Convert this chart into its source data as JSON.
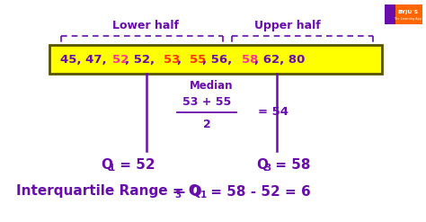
{
  "bg_color": "#ffffff",
  "box_bg": "#ffff00",
  "box_edge": "#333333",
  "purple": "#6a0dad",
  "pink": "#ff3399",
  "red_orange": "#ff3300",
  "lower_half_label": "Lower half",
  "upper_half_label": "Upper half",
  "median_label": "Median",
  "median_formula": "53 + 55",
  "median_denom": "2",
  "median_result": "= 54",
  "q1_text": "Q",
  "q1_sub": "1",
  "q1_val": " = 52",
  "q3_text": "Q",
  "q3_sub": "3",
  "q3_val": " = 58",
  "segments": [
    [
      "45, 47, ",
      "#6a0dad"
    ],
    [
      "52",
      "#ff3399"
    ],
    [
      ", 52, ",
      "#6a0dad"
    ],
    [
      "53",
      "#ff3300"
    ],
    [
      ", ",
      "#6a0dad"
    ],
    [
      "55",
      "#ff3300"
    ],
    [
      ", 56, ",
      "#6a0dad"
    ],
    [
      "58",
      "#ff3399"
    ],
    [
      ", 62, 80",
      "#6a0dad"
    ]
  ],
  "byju_orange": "#ff6600",
  "byju_purple": "#6a0dad"
}
